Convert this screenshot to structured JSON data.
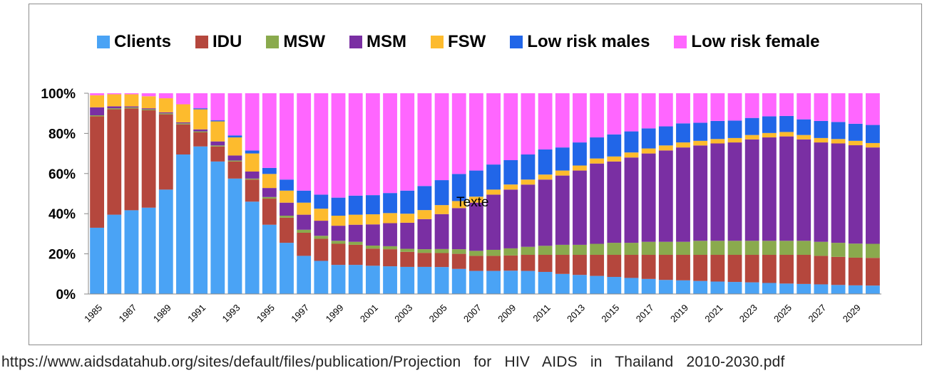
{
  "chart_data": {
    "type": "bar",
    "stacked": "percent",
    "legend_position": "top",
    "grid": false,
    "ylim": [
      0,
      100
    ],
    "y_ticks": [
      "0%",
      "20%",
      "40%",
      "60%",
      "80%",
      "100%"
    ],
    "x_tick_labels": [
      "1985",
      "1987",
      "1989",
      "1991",
      "1993",
      "1995",
      "1997",
      "1999",
      "2001",
      "2003",
      "2005",
      "2007",
      "2009",
      "2011",
      "2013",
      "2015",
      "2017",
      "2019",
      "2021",
      "2023",
      "2025",
      "2027",
      "2029"
    ],
    "categories": [
      1985,
      1986,
      1987,
      1988,
      1989,
      1990,
      1991,
      1992,
      1993,
      1994,
      1995,
      1996,
      1997,
      1998,
      1999,
      2000,
      2001,
      2002,
      2003,
      2004,
      2005,
      2006,
      2007,
      2008,
      2009,
      2010,
      2011,
      2012,
      2013,
      2014,
      2015,
      2016,
      2017,
      2018,
      2019,
      2020,
      2021,
      2022,
      2023,
      2024,
      2025,
      2026,
      2027,
      2028,
      2029,
      2030
    ],
    "series": [
      {
        "name": "Clients",
        "color": "#4aa3f5",
        "values": [
          33,
          39.5,
          41.5,
          43,
          52,
          69.5,
          73.5,
          66,
          57.5,
          46,
          34.5,
          25.5,
          19,
          16.5,
          14.5,
          14.5,
          14,
          13.8,
          13.5,
          13.5,
          13.5,
          12.5,
          11.5,
          11.5,
          11.5,
          11.5,
          11,
          10,
          9.5,
          9,
          8.5,
          8,
          7.5,
          7,
          6.8,
          6.5,
          6.2,
          6,
          5.8,
          5.5,
          5.2,
          5,
          4.8,
          4.5,
          4.3,
          4.2
        ]
      },
      {
        "name": "IDU",
        "color": "#b5473d",
        "values": [
          55.5,
          52.5,
          50.5,
          48.5,
          37.5,
          15,
          7,
          7.5,
          8.5,
          11,
          13,
          12.5,
          11.5,
          11,
          10.5,
          10,
          8.5,
          8.5,
          7.5,
          7,
          7,
          7.5,
          7.5,
          7.5,
          7.5,
          8,
          8.5,
          9.5,
          10,
          10.5,
          11,
          11.5,
          12,
          12.5,
          12.7,
          13,
          13.3,
          13.5,
          13.7,
          14,
          14.3,
          14.5,
          14.2,
          14,
          13.8,
          13.8
        ]
      },
      {
        "name": "MSW",
        "color": "#8aaa4d",
        "values": [
          0.5,
          0.5,
          0.5,
          0.5,
          0.5,
          0.5,
          0.5,
          0.5,
          0.5,
          0.5,
          0.8,
          1,
          1.5,
          1.5,
          1.5,
          1.5,
          1.5,
          1.5,
          1.5,
          1.8,
          2,
          2.3,
          2.5,
          3,
          3.5,
          4,
          4.5,
          5,
          5,
          5.5,
          6,
          6,
          6.5,
          6.5,
          6.5,
          7,
          7,
          7,
          7,
          7,
          7,
          7,
          7,
          7,
          7,
          7
        ]
      },
      {
        "name": "MSM",
        "color": "#7a2fa3",
        "values": [
          4,
          1,
          0.5,
          0.5,
          0.5,
          0.5,
          1,
          2,
          2.5,
          3.5,
          4.5,
          6.5,
          7.5,
          7.5,
          7.5,
          8.5,
          10.5,
          11.5,
          13,
          15,
          17.5,
          20.5,
          24,
          27.5,
          29,
          31,
          33,
          34.5,
          37,
          40,
          40.5,
          42.5,
          44,
          45.5,
          47,
          47.5,
          48.5,
          49,
          50.5,
          51.5,
          52,
          50.5,
          49.5,
          49.5,
          49,
          48
        ]
      },
      {
        "name": "FSW",
        "color": "#fdbb2d",
        "values": [
          6,
          6,
          6,
          6,
          7,
          9,
          10,
          10,
          9,
          9,
          7,
          6,
          6,
          6,
          5,
          5,
          5,
          5,
          4.5,
          4.5,
          4.5,
          3.5,
          3,
          2.5,
          2.5,
          2.5,
          2.5,
          2.5,
          2.5,
          2.5,
          2.5,
          2.5,
          2.5,
          2.5,
          2.5,
          2.3,
          2.2,
          2.2,
          2.2,
          2.2,
          2.2,
          2.2,
          2.2,
          2.2,
          2.2,
          2.2
        ]
      },
      {
        "name": "Low risk males",
        "color": "#2166e8",
        "values": [
          0,
          0,
          0,
          0,
          0,
          0,
          0.5,
          0.5,
          1,
          1.5,
          3,
          5.5,
          6,
          7,
          9,
          9.5,
          9.5,
          10,
          11.5,
          12,
          12.5,
          13.5,
          13,
          12.5,
          12,
          12.5,
          12.5,
          11.5,
          11.5,
          10.5,
          11,
          10.5,
          10,
          9.5,
          9.5,
          9,
          9,
          8.7,
          8.5,
          8.3,
          8,
          7.8,
          8.5,
          8.5,
          8.5,
          9
        ]
      },
      {
        "name": "Low risk female",
        "color": "#ff66ff",
        "values": [
          1,
          0.5,
          0.5,
          1.5,
          2.5,
          5.5,
          7.5,
          13.5,
          21,
          28.5,
          37.2,
          43,
          48.5,
          50.5,
          52,
          51,
          50.5,
          49.7,
          48.5,
          46.2,
          43.5,
          40.2,
          38.5,
          35.5,
          33,
          30.5,
          28,
          27,
          24.5,
          22,
          20.5,
          19,
          17.5,
          16.5,
          15,
          14.7,
          13.8,
          13.6,
          12.3,
          11.5,
          11.3,
          13,
          13.8,
          14.3,
          15.2,
          15.8
        ]
      }
    ],
    "annotation": "Texte"
  },
  "source_text": "https://www.aidsdatahub.org/sites/default/files/publication/Projection for HIV AIDS in Thailand 2010-2030.pdf"
}
